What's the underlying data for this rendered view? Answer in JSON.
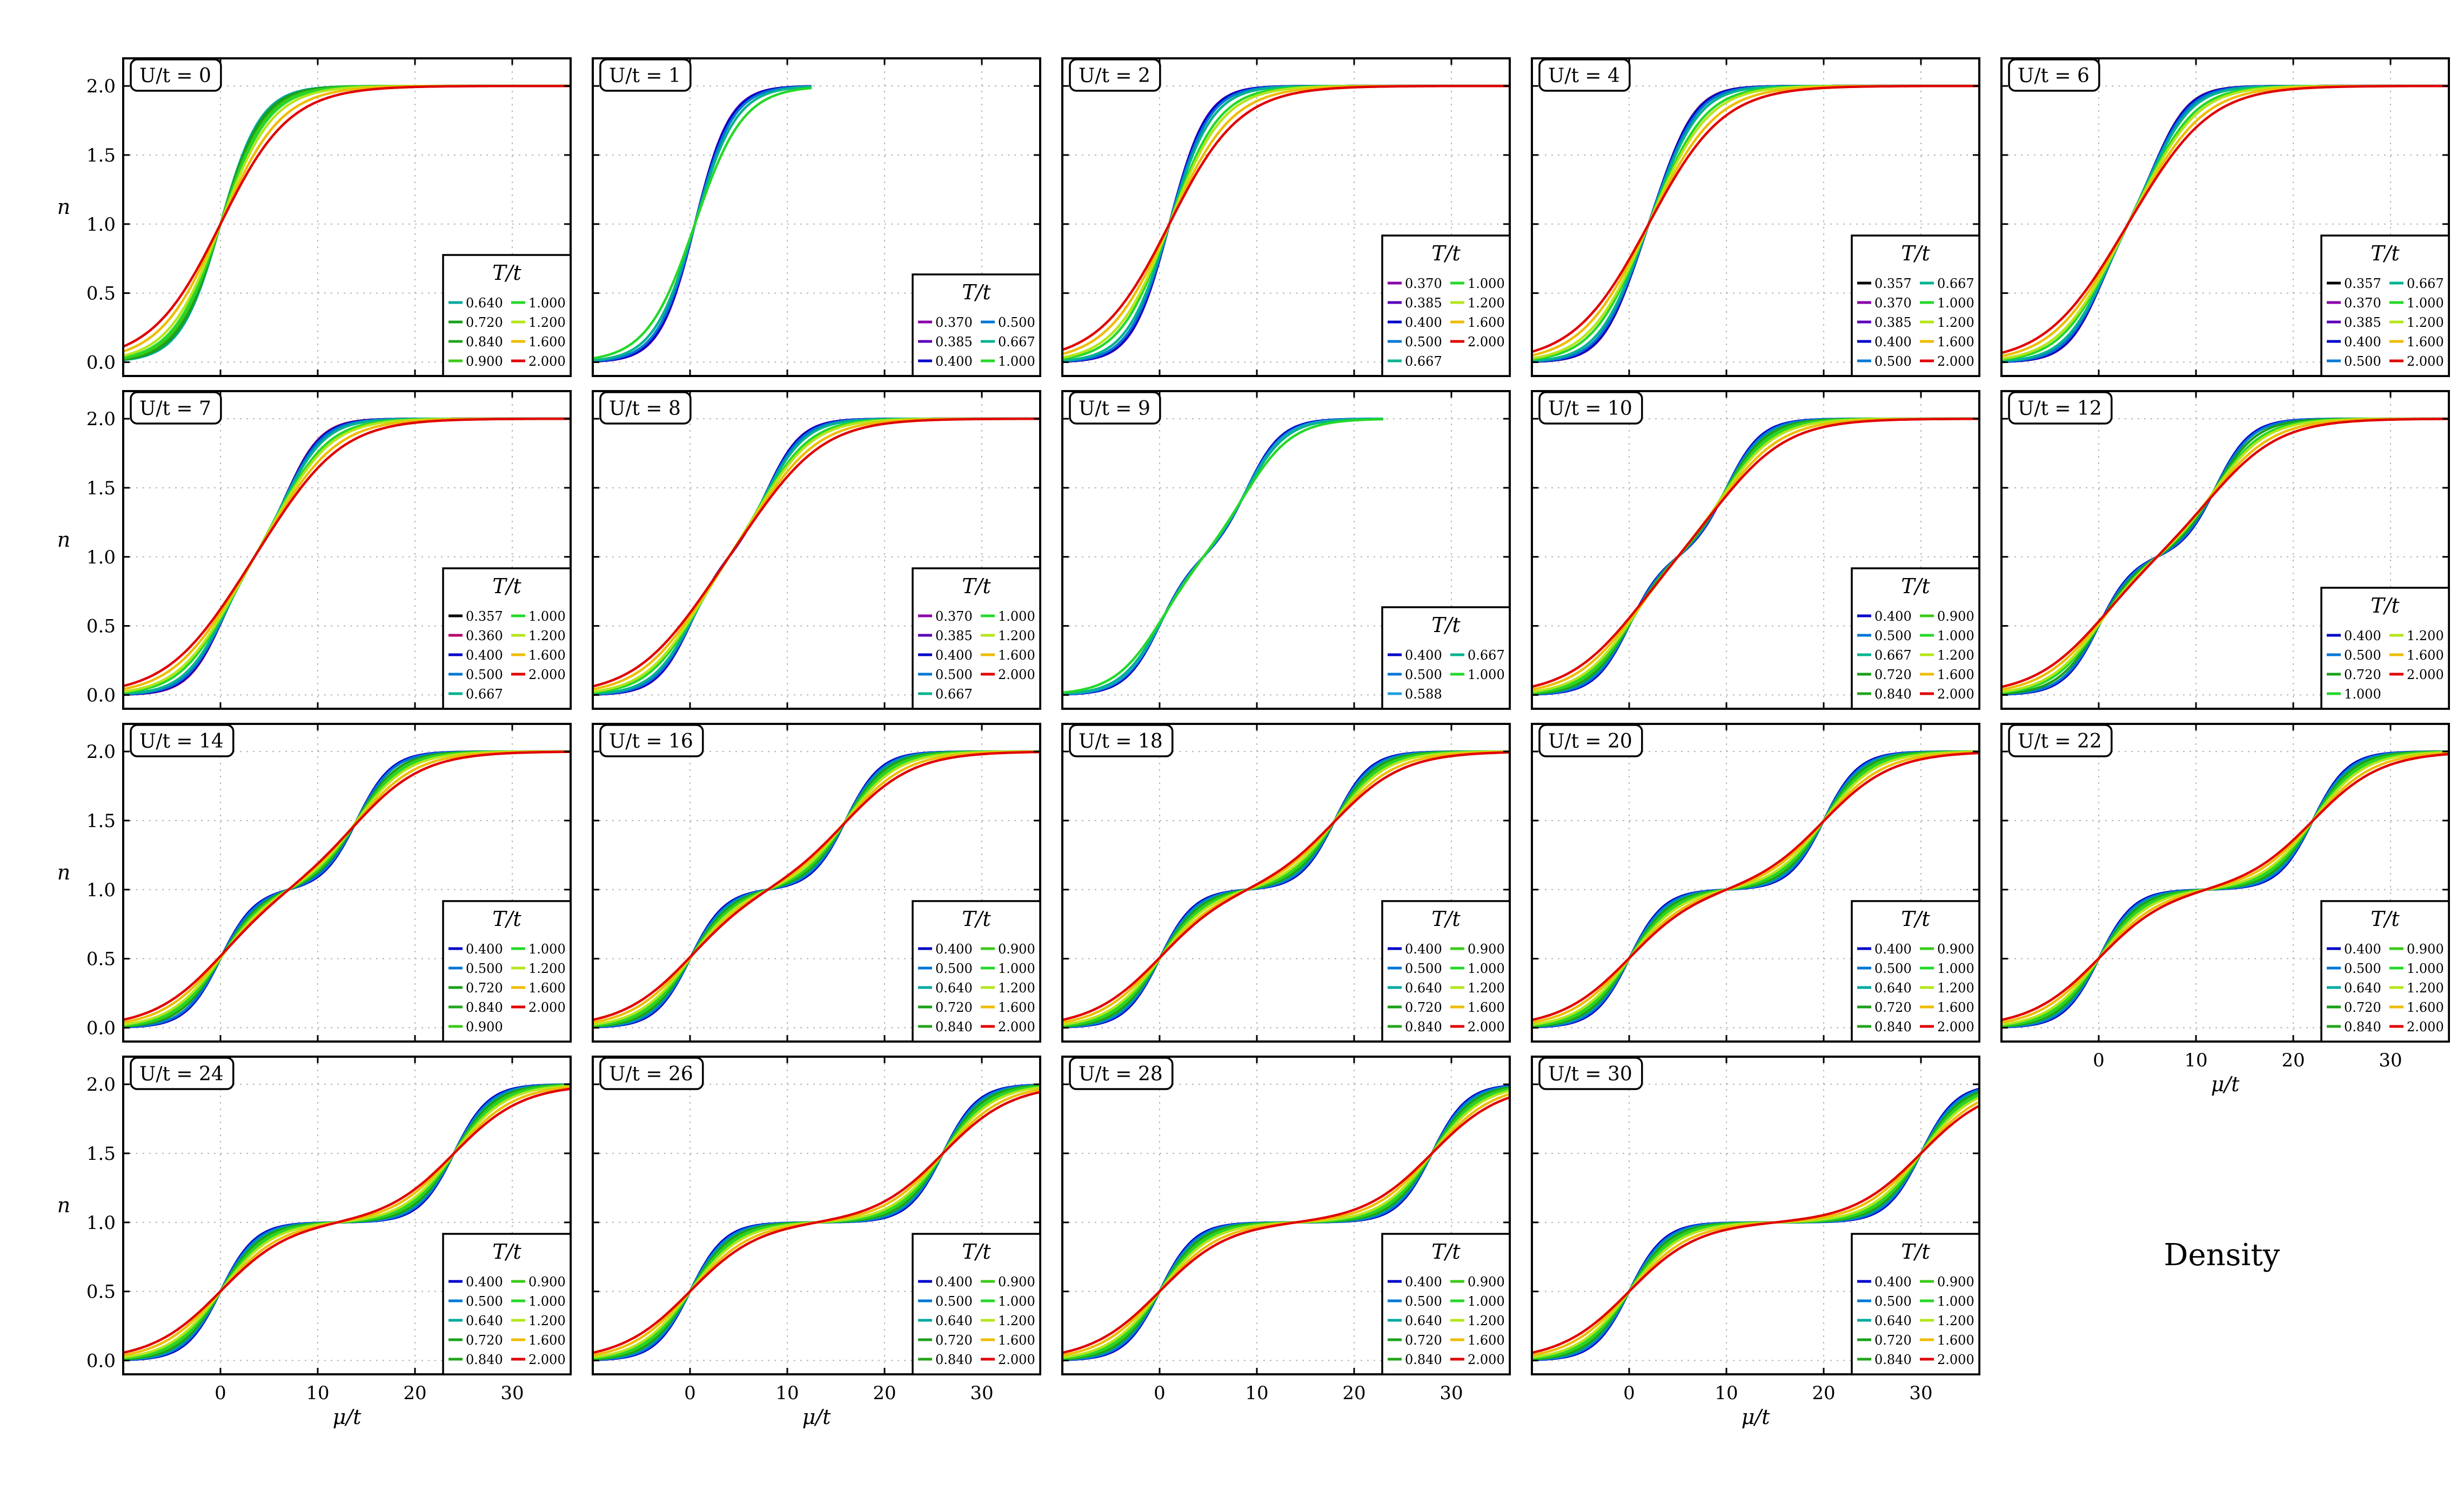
{
  "figure": {
    "caption": "Density"
  },
  "chart_data": [
    {
      "type": "line",
      "title": "U/t = 0",
      "U": 0,
      "ylabel": "n",
      "xlabel": "",
      "x_range": [
        -10,
        36
      ],
      "ylim": [
        -0.1,
        2.2
      ],
      "mu_max": 36,
      "temperatures": [
        "0.640",
        "0.720",
        "0.840",
        "0.900",
        "1.000",
        "1.200",
        "1.600",
        "2.000"
      ]
    },
    {
      "type": "line",
      "title": "U/t = 1",
      "U": 1,
      "ylabel": "",
      "xlabel": "",
      "x_range": [
        -10,
        36
      ],
      "ylim": [
        -0.1,
        2.2
      ],
      "mu_max": 12.5,
      "temperatures": [
        "0.370",
        "0.385",
        "0.400",
        "0.500",
        "0.667",
        "1.000"
      ]
    },
    {
      "type": "line",
      "title": "U/t = 2",
      "U": 2,
      "ylabel": "",
      "xlabel": "",
      "x_range": [
        -10,
        36
      ],
      "ylim": [
        -0.1,
        2.2
      ],
      "mu_max": 36,
      "temperatures": [
        "0.370",
        "0.385",
        "0.400",
        "0.500",
        "0.667",
        "1.000",
        "1.200",
        "1.600",
        "2.000"
      ]
    },
    {
      "type": "line",
      "title": "U/t = 4",
      "U": 4,
      "ylabel": "",
      "xlabel": "",
      "x_range": [
        -10,
        36
      ],
      "ylim": [
        -0.1,
        2.2
      ],
      "mu_max": 36,
      "temperatures": [
        "0.357",
        "0.370",
        "0.385",
        "0.400",
        "0.500",
        "0.667",
        "1.000",
        "1.200",
        "1.600",
        "2.000"
      ]
    },
    {
      "type": "line",
      "title": "U/t = 6",
      "U": 6,
      "ylabel": "",
      "xlabel": "",
      "x_range": [
        -10,
        36
      ],
      "ylim": [
        -0.1,
        2.2
      ],
      "mu_max": 36,
      "temperatures": [
        "0.357",
        "0.370",
        "0.385",
        "0.400",
        "0.500",
        "0.667",
        "1.000",
        "1.200",
        "1.600",
        "2.000"
      ]
    },
    {
      "type": "line",
      "title": "U/t = 7",
      "U": 7,
      "ylabel": "n",
      "xlabel": "",
      "x_range": [
        -10,
        36
      ],
      "ylim": [
        -0.1,
        2.2
      ],
      "mu_max": 36,
      "temperatures": [
        "0.357",
        "0.360",
        "0.400",
        "0.500",
        "0.667",
        "1.000",
        "1.200",
        "1.600",
        "2.000"
      ]
    },
    {
      "type": "line",
      "title": "U/t = 8",
      "U": 8,
      "ylabel": "",
      "xlabel": "",
      "x_range": [
        -10,
        36
      ],
      "ylim": [
        -0.1,
        2.2
      ],
      "mu_max": 36,
      "temperatures": [
        "0.370",
        "0.385",
        "0.400",
        "0.500",
        "0.667",
        "1.000",
        "1.200",
        "1.600",
        "2.000"
      ]
    },
    {
      "type": "line",
      "title": "U/t = 9",
      "U": 9,
      "ylabel": "",
      "xlabel": "",
      "x_range": [
        -10,
        36
      ],
      "ylim": [
        -0.1,
        2.2
      ],
      "mu_max": 23,
      "temperatures": [
        "0.400",
        "0.500",
        "0.588",
        "0.667",
        "1.000"
      ]
    },
    {
      "type": "line",
      "title": "U/t = 10",
      "U": 10,
      "ylabel": "",
      "xlabel": "",
      "x_range": [
        -10,
        36
      ],
      "ylim": [
        -0.1,
        2.2
      ],
      "mu_max": 36,
      "temperatures": [
        "0.400",
        "0.500",
        "0.667",
        "0.720",
        "0.840",
        "0.900",
        "1.000",
        "1.200",
        "1.600",
        "2.000"
      ]
    },
    {
      "type": "line",
      "title": "U/t = 12",
      "U": 12,
      "ylabel": "",
      "xlabel": "",
      "x_range": [
        -10,
        36
      ],
      "ylim": [
        -0.1,
        2.2
      ],
      "mu_max": 36,
      "temperatures": [
        "0.400",
        "0.500",
        "0.720",
        "1.000",
        "1.200",
        "1.600",
        "2.000"
      ]
    },
    {
      "type": "line",
      "title": "U/t = 14",
      "U": 14,
      "ylabel": "n",
      "xlabel": "",
      "x_range": [
        -10,
        36
      ],
      "ylim": [
        -0.1,
        2.2
      ],
      "mu_max": 36,
      "temperatures": [
        "0.400",
        "0.500",
        "0.720",
        "0.840",
        "0.900",
        "1.000",
        "1.200",
        "1.600",
        "2.000"
      ]
    },
    {
      "type": "line",
      "title": "U/t = 16",
      "U": 16,
      "ylabel": "",
      "xlabel": "",
      "x_range": [
        -10,
        36
      ],
      "ylim": [
        -0.1,
        2.2
      ],
      "mu_max": 36,
      "temperatures": [
        "0.400",
        "0.500",
        "0.640",
        "0.720",
        "0.840",
        "0.900",
        "1.000",
        "1.200",
        "1.600",
        "2.000"
      ]
    },
    {
      "type": "line",
      "title": "U/t = 18",
      "U": 18,
      "ylabel": "",
      "xlabel": "",
      "x_range": [
        -10,
        36
      ],
      "ylim": [
        -0.1,
        2.2
      ],
      "mu_max": 36,
      "temperatures": [
        "0.400",
        "0.500",
        "0.640",
        "0.720",
        "0.840",
        "0.900",
        "1.000",
        "1.200",
        "1.600",
        "2.000"
      ]
    },
    {
      "type": "line",
      "title": "U/t = 20",
      "U": 20,
      "ylabel": "",
      "xlabel": "",
      "x_range": [
        -10,
        36
      ],
      "ylim": [
        -0.1,
        2.2
      ],
      "mu_max": 36,
      "temperatures": [
        "0.400",
        "0.500",
        "0.640",
        "0.720",
        "0.840",
        "0.900",
        "1.000",
        "1.200",
        "1.600",
        "2.000"
      ]
    },
    {
      "type": "line",
      "title": "U/t = 22",
      "U": 22,
      "ylabel": "",
      "xlabel": "μ/t",
      "x_range": [
        -10,
        36
      ],
      "ylim": [
        -0.1,
        2.2
      ],
      "mu_max": 36,
      "temperatures": [
        "0.400",
        "0.500",
        "0.640",
        "0.720",
        "0.840",
        "0.900",
        "1.000",
        "1.200",
        "1.600",
        "2.000"
      ]
    },
    {
      "type": "line",
      "title": "U/t = 24",
      "U": 24,
      "ylabel": "n",
      "xlabel": "μ/t",
      "x_range": [
        -10,
        36
      ],
      "ylim": [
        -0.1,
        2.2
      ],
      "mu_max": 36,
      "temperatures": [
        "0.400",
        "0.500",
        "0.640",
        "0.720",
        "0.840",
        "0.900",
        "1.000",
        "1.200",
        "1.600",
        "2.000"
      ]
    },
    {
      "type": "line",
      "title": "U/t = 26",
      "U": 26,
      "ylabel": "",
      "xlabel": "μ/t",
      "x_range": [
        -10,
        36
      ],
      "ylim": [
        -0.1,
        2.2
      ],
      "mu_max": 36,
      "temperatures": [
        "0.400",
        "0.500",
        "0.640",
        "0.720",
        "0.840",
        "0.900",
        "1.000",
        "1.200",
        "1.600",
        "2.000"
      ]
    },
    {
      "type": "line",
      "title": "U/t = 28",
      "U": 28,
      "ylabel": "",
      "xlabel": "",
      "x_range": [
        -10,
        36
      ],
      "ylim": [
        -0.1,
        2.2
      ],
      "mu_max": 36,
      "temperatures": [
        "0.400",
        "0.500",
        "0.640",
        "0.720",
        "0.840",
        "0.900",
        "1.000",
        "1.200",
        "1.600",
        "2.000"
      ]
    },
    {
      "type": "line",
      "title": "U/t = 30",
      "U": 30,
      "ylabel": "",
      "xlabel": "μ/t",
      "x_range": [
        -10,
        36
      ],
      "ylim": [
        -0.1,
        2.2
      ],
      "mu_max": 36,
      "temperatures": [
        "0.400",
        "0.500",
        "0.640",
        "0.720",
        "0.840",
        "0.900",
        "1.000",
        "1.200",
        "1.600",
        "2.000"
      ]
    }
  ],
  "axes_common": {
    "x_ticks": [
      0,
      10,
      20,
      30
    ],
    "y_ticks": [
      0.0,
      0.5,
      1.0,
      1.5,
      2.0
    ],
    "grid": true,
    "legend_title": "T/t",
    "legend_placement": "lower right"
  },
  "temperature_colors": {
    "0.357": "#000000",
    "0.360": "#b8006b",
    "0.370": "#8a00a8",
    "0.385": "#5a00b8",
    "0.400": "#0000c8",
    "0.500": "#0077d6",
    "0.588": "#1f9fe0",
    "0.640": "#00a9a0",
    "0.667": "#00b38f",
    "0.720": "#1aa01a",
    "0.840": "#22a61a",
    "0.900": "#3acb16",
    "1.000": "#25d82a",
    "1.200": "#b4e61b",
    "1.600": "#eebc00",
    "2.000": "#e00000"
  }
}
